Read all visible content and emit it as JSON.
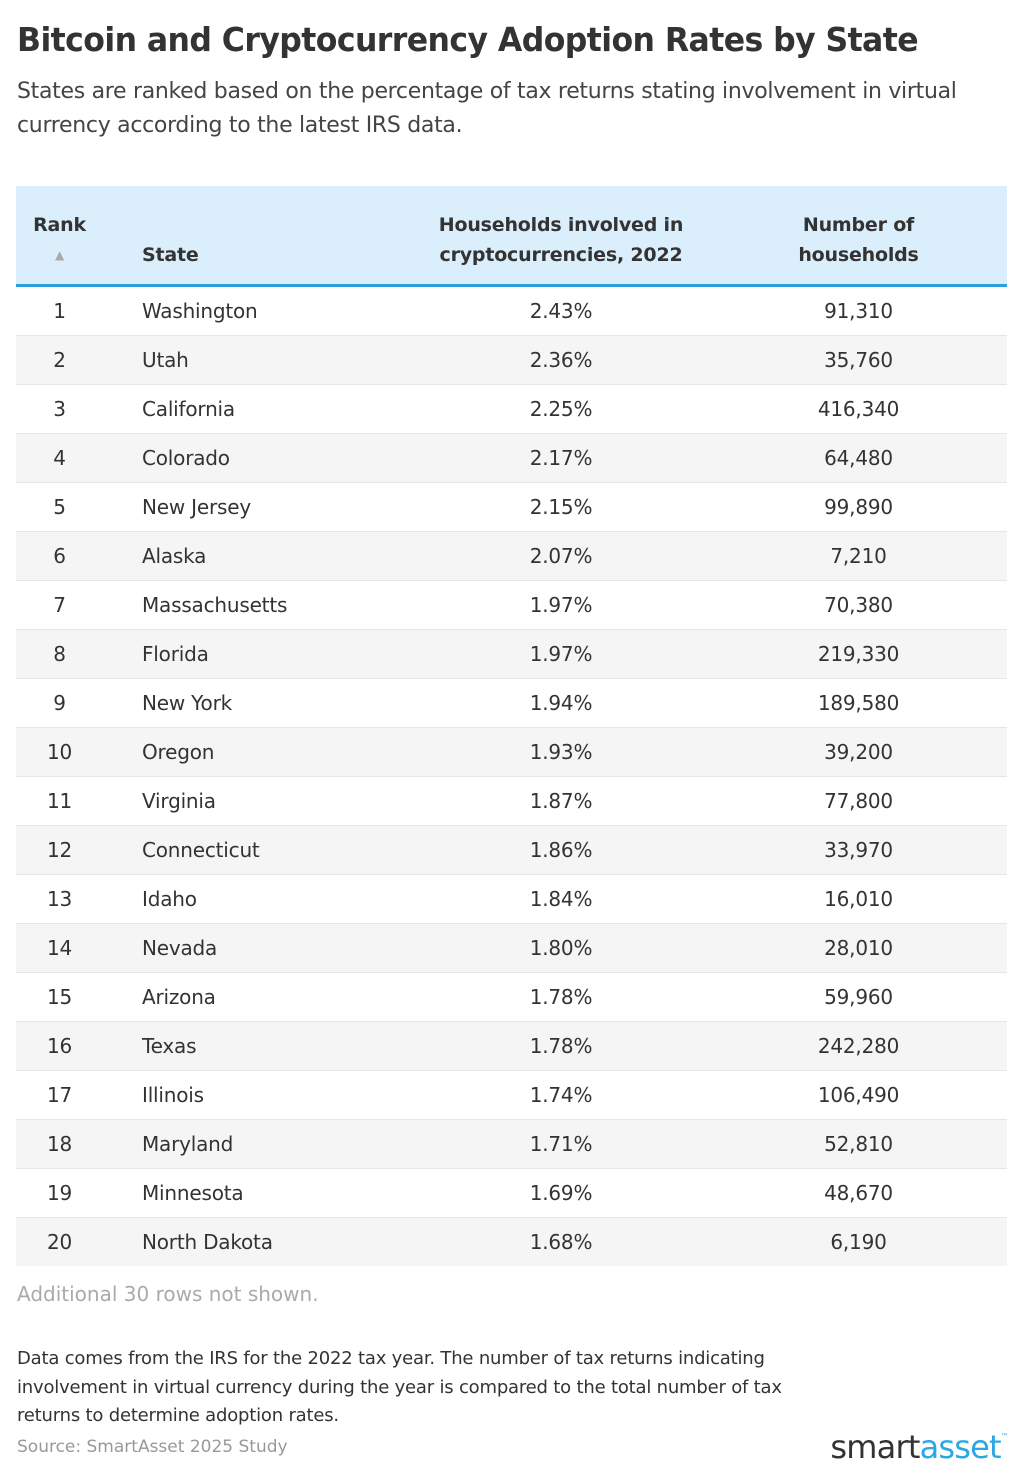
{
  "header": {
    "title": "Bitcoin and Cryptocurrency Adoption Rates by State",
    "subtitle": "States are ranked based on the percentage of tax returns stating involvement in virtual currency according to the latest IRS data."
  },
  "table": {
    "columns": [
      {
        "key": "rank",
        "label": "Rank",
        "sort_icon": "triangle-up"
      },
      {
        "key": "state",
        "label": "State"
      },
      {
        "key": "pct",
        "label": "Households involved in cryptocurrencies, 2022"
      },
      {
        "key": "households",
        "label": "Number of households"
      }
    ],
    "rows": [
      {
        "rank": "1",
        "state": "Washington",
        "pct": "2.43%",
        "households": "91,310"
      },
      {
        "rank": "2",
        "state": "Utah",
        "pct": "2.36%",
        "households": "35,760"
      },
      {
        "rank": "3",
        "state": "California",
        "pct": "2.25%",
        "households": "416,340"
      },
      {
        "rank": "4",
        "state": "Colorado",
        "pct": "2.17%",
        "households": "64,480"
      },
      {
        "rank": "5",
        "state": "New Jersey",
        "pct": "2.15%",
        "households": "99,890"
      },
      {
        "rank": "6",
        "state": "Alaska",
        "pct": "2.07%",
        "households": "7,210"
      },
      {
        "rank": "7",
        "state": "Massachusetts",
        "pct": "1.97%",
        "households": "70,380"
      },
      {
        "rank": "8",
        "state": "Florida",
        "pct": "1.97%",
        "households": "219,330"
      },
      {
        "rank": "9",
        "state": "New York",
        "pct": "1.94%",
        "households": "189,580"
      },
      {
        "rank": "10",
        "state": "Oregon",
        "pct": "1.93%",
        "households": "39,200"
      },
      {
        "rank": "11",
        "state": "Virginia",
        "pct": "1.87%",
        "households": "77,800"
      },
      {
        "rank": "12",
        "state": "Connecticut",
        "pct": "1.86%",
        "households": "33,970"
      },
      {
        "rank": "13",
        "state": "Idaho",
        "pct": "1.84%",
        "households": "16,010"
      },
      {
        "rank": "14",
        "state": "Nevada",
        "pct": "1.80%",
        "households": "28,010"
      },
      {
        "rank": "15",
        "state": "Arizona",
        "pct": "1.78%",
        "households": "59,960"
      },
      {
        "rank": "16",
        "state": "Texas",
        "pct": "1.78%",
        "households": "242,280"
      },
      {
        "rank": "17",
        "state": "Illinois",
        "pct": "1.74%",
        "households": "106,490"
      },
      {
        "rank": "18",
        "state": "Maryland",
        "pct": "1.71%",
        "households": "52,810"
      },
      {
        "rank": "19",
        "state": "Minnesota",
        "pct": "1.69%",
        "households": "48,670"
      },
      {
        "rank": "20",
        "state": "North Dakota",
        "pct": "1.68%",
        "households": "6,190"
      }
    ],
    "more_rows_note": "Additional 30 rows not shown."
  },
  "footer": {
    "note": "Data comes from the IRS for the 2022 tax year. The number of tax returns indicating involvement in virtual currency during the year is compared to the total number of tax returns to determine adoption rates.",
    "source": "Source: SmartAsset 2025 Study",
    "logo": {
      "part1": "smart",
      "part2": "asset",
      "tm": "™"
    }
  },
  "colors": {
    "header_bg": "#dbeefb",
    "header_border": "#2a9ee0",
    "alt_row_bg": "#f5f5f5",
    "text": "#333333",
    "muted": "#aaaaaa",
    "brand_blue": "#2aa7e6"
  },
  "chart_data": {
    "type": "table",
    "title": "Bitcoin and Cryptocurrency Adoption Rates by State",
    "subtitle": "States are ranked based on the percentage of tax returns stating involvement in virtual currency according to the latest IRS data.",
    "columns": [
      "Rank",
      "State",
      "Households involved in cryptocurrencies, 2022",
      "Number of households"
    ],
    "rows": [
      [
        1,
        "Washington",
        2.43,
        91310
      ],
      [
        2,
        "Utah",
        2.36,
        35760
      ],
      [
        3,
        "California",
        2.25,
        416340
      ],
      [
        4,
        "Colorado",
        2.17,
        64480
      ],
      [
        5,
        "New Jersey",
        2.15,
        99890
      ],
      [
        6,
        "Alaska",
        2.07,
        7210
      ],
      [
        7,
        "Massachusetts",
        1.97,
        70380
      ],
      [
        8,
        "Florida",
        1.97,
        219330
      ],
      [
        9,
        "New York",
        1.94,
        189580
      ],
      [
        10,
        "Oregon",
        1.93,
        39200
      ],
      [
        11,
        "Virginia",
        1.87,
        77800
      ],
      [
        12,
        "Connecticut",
        1.86,
        33970
      ],
      [
        13,
        "Idaho",
        1.84,
        16010
      ],
      [
        14,
        "Nevada",
        1.8,
        28010
      ],
      [
        15,
        "Arizona",
        1.78,
        59960
      ],
      [
        16,
        "Texas",
        1.78,
        242280
      ],
      [
        17,
        "Illinois",
        1.74,
        106490
      ],
      [
        18,
        "Maryland",
        1.71,
        52810
      ],
      [
        19,
        "Minnesota",
        1.69,
        48670
      ],
      [
        20,
        "North Dakota",
        1.68,
        6190
      ]
    ],
    "sorted_by": "Rank ascending",
    "annotations": [
      "Additional 30 rows not shown.",
      "Source: SmartAsset 2025 Study"
    ]
  }
}
